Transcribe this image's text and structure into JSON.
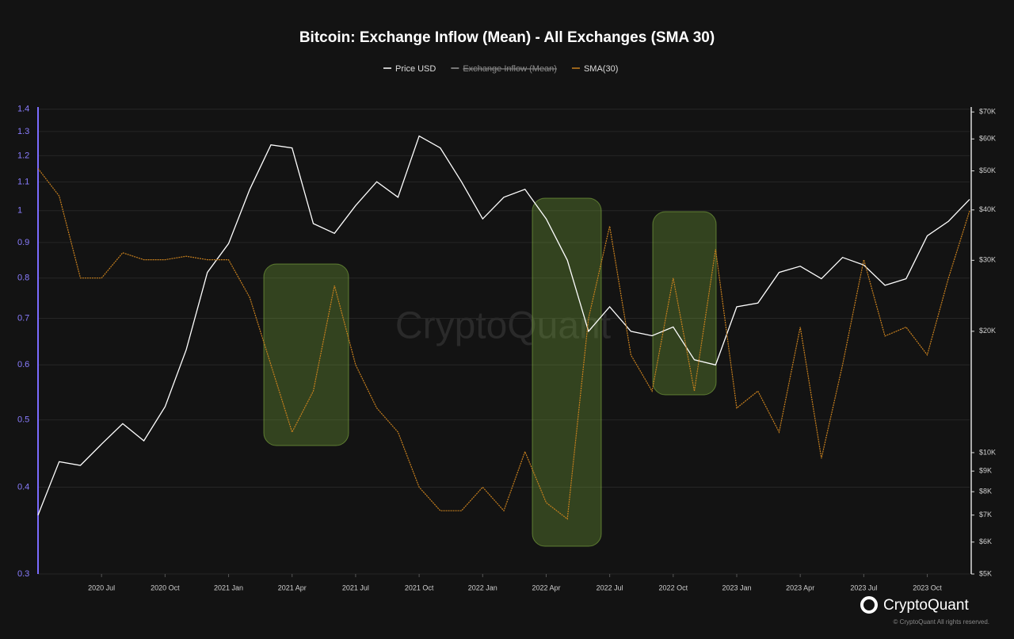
{
  "chart_data": {
    "type": "line",
    "title": "Bitcoin: Exchange Inflow (Mean) - All Exchanges (SMA 30)",
    "x": [
      "2020-04",
      "2020-05",
      "2020-06",
      "2020-07",
      "2020-08",
      "2020-09",
      "2020-10",
      "2020-11",
      "2020-12",
      "2021-01",
      "2021-02",
      "2021-03",
      "2021-04",
      "2021-05",
      "2021-06",
      "2021-07",
      "2021-08",
      "2021-09",
      "2021-10",
      "2021-11",
      "2021-12",
      "2022-01",
      "2022-02",
      "2022-03",
      "2022-04",
      "2022-05",
      "2022-06",
      "2022-07",
      "2022-08",
      "2022-09",
      "2022-10",
      "2022-11",
      "2022-12",
      "2023-01",
      "2023-02",
      "2023-03",
      "2023-04",
      "2023-05",
      "2023-06",
      "2023-07",
      "2023-08",
      "2023-09",
      "2023-10",
      "2023-11",
      "2023-12"
    ],
    "xlim": [
      "2020-04",
      "2023-12"
    ],
    "xticks": [
      {
        "value": "2020-07",
        "label": "2020 Jul"
      },
      {
        "value": "2020-10",
        "label": "2020 Oct"
      },
      {
        "value": "2021-01",
        "label": "2021 Jan"
      },
      {
        "value": "2021-04",
        "label": "2021 Apr"
      },
      {
        "value": "2021-07",
        "label": "2021 Jul"
      },
      {
        "value": "2021-10",
        "label": "2021 Oct"
      },
      {
        "value": "2022-01",
        "label": "2022 Jan"
      },
      {
        "value": "2022-04",
        "label": "2022 Apr"
      },
      {
        "value": "2022-07",
        "label": "2022 Jul"
      },
      {
        "value": "2022-10",
        "label": "2022 Oct"
      },
      {
        "value": "2023-01",
        "label": "2023 Jan"
      },
      {
        "value": "2023-04",
        "label": "2023 Apr"
      },
      {
        "value": "2023-07",
        "label": "2023 Jul"
      },
      {
        "value": "2023-10",
        "label": "2023 Oct"
      }
    ],
    "ylog": true,
    "ylim": [
      0.3,
      1.41
    ],
    "yticks": [
      0.3,
      0.4,
      0.5,
      0.6,
      0.7,
      0.8,
      0.9,
      1,
      1.1,
      1.2,
      1.3,
      1.4
    ],
    "y2log": true,
    "y2lim": [
      5000,
      72000
    ],
    "y2ticks": [
      {
        "value": 5000,
        "label": "$5K"
      },
      {
        "value": 6000,
        "label": "$6K"
      },
      {
        "value": 7000,
        "label": "$7K"
      },
      {
        "value": 8000,
        "label": "$8K"
      },
      {
        "value": 9000,
        "label": "$9K"
      },
      {
        "value": 10000,
        "label": "$10K"
      },
      {
        "value": 20000,
        "label": "$20K"
      },
      {
        "value": 30000,
        "label": "$30K"
      },
      {
        "value": 40000,
        "label": "$40K"
      },
      {
        "value": 50000,
        "label": "$50K"
      },
      {
        "value": 60000,
        "label": "$60K"
      },
      {
        "value": 70000,
        "label": "$70K"
      }
    ],
    "grid": true,
    "series": [
      {
        "name": "Price USD",
        "color": "#ffffff",
        "axis": "y2",
        "values": [
          7000,
          9500,
          9300,
          10500,
          11800,
          10700,
          13000,
          18000,
          28000,
          33000,
          45000,
          58000,
          57000,
          37000,
          35000,
          41000,
          47000,
          43000,
          61000,
          57000,
          47000,
          38000,
          43000,
          45000,
          38000,
          30000,
          20000,
          23000,
          20000,
          19500,
          20500,
          17000,
          16500,
          23000,
          23500,
          28000,
          29000,
          27000,
          30500,
          29200,
          26000,
          27000,
          34500,
          37500,
          42500
        ]
      },
      {
        "name": "Exchange Inflow (Mean)",
        "color": "#9a9a9a",
        "visible": false
      },
      {
        "name": "SMA(30)",
        "color": "#c8801e",
        "values": [
          1.15,
          1.05,
          0.8,
          0.8,
          0.87,
          0.85,
          0.85,
          0.86,
          0.85,
          0.85,
          0.75,
          0.6,
          0.48,
          0.55,
          0.78,
          0.6,
          0.52,
          0.48,
          0.4,
          0.37,
          0.37,
          0.4,
          0.37,
          0.45,
          0.38,
          0.36,
          0.7,
          0.95,
          0.62,
          0.55,
          0.8,
          0.55,
          0.88,
          0.52,
          0.55,
          0.48,
          0.68,
          0.44,
          0.6,
          0.85,
          0.66,
          0.68,
          0.62,
          0.8,
          1.0
        ]
      }
    ],
    "watermark": "CryptoQuant",
    "brand": "CryptoQuant",
    "copyright": "© CryptoQuant All rights reserved."
  }
}
